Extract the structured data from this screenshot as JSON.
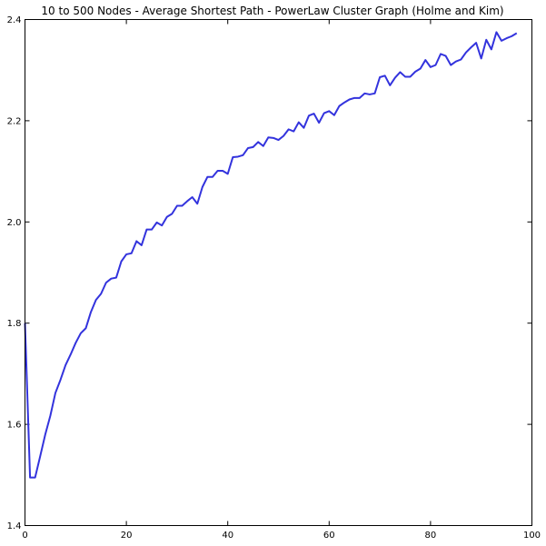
{
  "chart_data": {
    "type": "line",
    "title": "10 to 500 Nodes - Average Shortest Path - PowerLaw Cluster Graph (Holme and Kim)",
    "xlabel": "",
    "ylabel": "",
    "xlim": [
      0,
      100
    ],
    "ylim": [
      1.4,
      2.4
    ],
    "xticks": [
      "0",
      "20",
      "40",
      "60",
      "80",
      "100"
    ],
    "yticks": [
      "1.4",
      "1.6",
      "1.8",
      "2.0",
      "2.2",
      "2.4"
    ],
    "grid": false,
    "line_color": "#3333dd",
    "series": [
      {
        "x": [
          0,
          1,
          2,
          3,
          4,
          5,
          6,
          7,
          8,
          9,
          10,
          11,
          12,
          13,
          14,
          15,
          16,
          17,
          18,
          19,
          20,
          21,
          22,
          23,
          24,
          25,
          26,
          27,
          28,
          29,
          30,
          31,
          32,
          33,
          34,
          35,
          36,
          37,
          38,
          39,
          40,
          41,
          42,
          43,
          44,
          45,
          46,
          47,
          48,
          49,
          50,
          51,
          52,
          53,
          54,
          55,
          56,
          57,
          58,
          59,
          60,
          61,
          62,
          63,
          64,
          65,
          66,
          67,
          68,
          69,
          70,
          71,
          72,
          73,
          74,
          75,
          76,
          77,
          78,
          79,
          80,
          81,
          82,
          83,
          84,
          85,
          86,
          87,
          88,
          89,
          90,
          91,
          92,
          93,
          94,
          95,
          96,
          97
        ],
        "values": [
          1.8,
          1.495,
          1.495,
          1.537,
          1.58,
          1.617,
          1.662,
          1.688,
          1.717,
          1.738,
          1.761,
          1.78,
          1.79,
          1.822,
          1.846,
          1.858,
          1.88,
          1.888,
          1.89,
          1.922,
          1.936,
          1.938,
          1.962,
          1.954,
          1.985,
          1.985,
          1.999,
          1.993,
          2.01,
          2.016,
          2.032,
          2.032,
          2.041,
          2.049,
          2.036,
          2.069,
          2.089,
          2.089,
          2.101,
          2.101,
          2.095,
          2.128,
          2.129,
          2.132,
          2.146,
          2.148,
          2.158,
          2.15,
          2.167,
          2.166,
          2.162,
          2.17,
          2.183,
          2.179,
          2.197,
          2.186,
          2.21,
          2.214,
          2.196,
          2.215,
          2.219,
          2.211,
          2.229,
          2.236,
          2.242,
          2.245,
          2.245,
          2.254,
          2.252,
          2.254,
          2.286,
          2.289,
          2.27,
          2.285,
          2.296,
          2.287,
          2.287,
          2.297,
          2.303,
          2.32,
          2.306,
          2.31,
          2.332,
          2.328,
          2.31,
          2.317,
          2.321,
          2.335,
          2.345,
          2.354,
          2.323,
          2.36,
          2.341,
          2.375,
          2.358,
          2.363,
          2.367,
          2.373
        ]
      }
    ]
  }
}
